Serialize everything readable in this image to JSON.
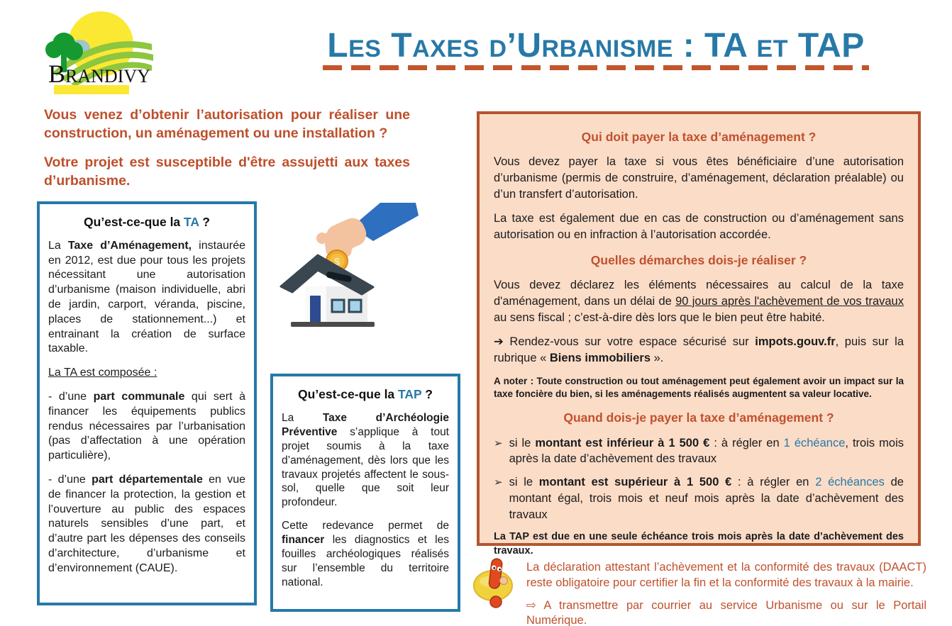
{
  "colors": {
    "accent_teal": "#2779A7",
    "accent_orange": "#C0512E",
    "info_box_border": "#B5552F",
    "info_box_bg": "#FBDCC7",
    "logo_yellow": "#FBE833",
    "logo_green": "#8DC63F"
  },
  "logo": {
    "name": "Brandivy",
    "wordmark_initial": "B",
    "wordmark_rest": "RANDIVY"
  },
  "title": {
    "text": "Les Taxes d’Urbanisme : TA et TAP"
  },
  "intro": {
    "p1": "Vous venez d’obtenir l’autorisation pour réaliser une construction, un aménagement ou une installation ?",
    "p2": "Votre projet est susceptible d'être assujetti aux taxes d’urbanisme."
  },
  "ta_box": {
    "title_prefix": "Qu’est-ce-que la ",
    "title_tax": "TA",
    "title_suffix": " ?",
    "p1": [
      {
        "t": "La "
      },
      {
        "t": "Taxe d’Aménagement,",
        "b": true
      },
      {
        "t": " instaurée en 2012, est due pour tous les projets nécessitant une autorisation d’urbanisme (maison individuelle, abri de jardin, carport, véranda, piscine, places de stationnement...) et entrainant la création de surface taxable."
      }
    ],
    "p2": [
      {
        "t": "La TA est composée :",
        "u": true
      }
    ],
    "p3": [
      {
        "t": "- d’une "
      },
      {
        "t": "part communale",
        "b": true
      },
      {
        "t": " qui sert à financer les équipements publics rendus nécessaires par l’urbanisation (pas d’affectation à une opération particulière),"
      }
    ],
    "p4": [
      {
        "t": "- d’une "
      },
      {
        "t": "part départementale",
        "b": true
      },
      {
        "t": " en vue de financer la protection, la gestion et l’ouverture au public des espaces naturels sensibles d’une part, et d’autre part les dépenses des conseils d’architecture, d’urbanisme et d’environnement (CAUE)."
      }
    ]
  },
  "tap_box": {
    "title_prefix": "Qu’est-ce-que la ",
    "title_tax": "TAP",
    "title_suffix": " ?",
    "p1": [
      {
        "t": "La "
      },
      {
        "t": "Taxe d’Archéologie Préventive",
        "b": true
      },
      {
        "t": " s’applique à tout projet soumis à la taxe d’aménagement, dès lors que les travaux projetés affectent le sous-sol, quelle que soit leur profondeur."
      }
    ],
    "p2": [
      {
        "t": "Cette redevance permet de "
      },
      {
        "t": "financer",
        "b": true
      },
      {
        "t": " les diagnostics et les fouilles archéologiques réalisés sur l’ensemble du territoire national."
      }
    ]
  },
  "info_box": {
    "s1_heading": "Qui doit payer la taxe d’aménagement ?",
    "s1_p1": "Vous devez payer la taxe si vous êtes bénéficiaire d’une autorisation d’urbanisme (permis de construire, d’aménagement, déclaration préalable) ou d’un transfert d’autorisation.",
    "s1_p2": "La taxe est également due en cas de construction ou d’aménagement sans autorisation ou en infraction à l’autorisation accordée.",
    "s2_heading": "Quelles démarches dois-je réaliser ?",
    "s2_p1": [
      {
        "t": "Vous devez déclarez les éléments nécessaires au calcul de la taxe d'aménagement, dans un délai de "
      },
      {
        "t": "90 jours après l'achèvement de vos travaux",
        "u": true
      },
      {
        "t": " au sens fiscal ; c’est-à-dire dès lors que le bien peut être habité."
      }
    ],
    "s2_p2": [
      {
        "t": "➔  Rendez-vous sur votre espace sécurisé sur "
      },
      {
        "t": "impots.gouv.fr",
        "b": true
      },
      {
        "t": ", puis sur la rubrique « "
      },
      {
        "t": "Biens immobiliers",
        "b": true
      },
      {
        "t": " »."
      }
    ],
    "note": [
      {
        "t": "A noter : Toute construction ou tout aménagement peut également avoir un impact sur la taxe foncière du bien, si les aménagements réalisés augmentent sa valeur locative.",
        "b": true
      }
    ],
    "s3_heading": "Quand dois-je payer la taxe d’aménagement ?",
    "bullet_char": "➢",
    "s3_b1": [
      {
        "t": "si le "
      },
      {
        "t": "montant est inférieur à 1 500 €",
        "b": true
      },
      {
        "t": " : à régler en "
      },
      {
        "t": "1 échéance",
        "c": "#2779A7"
      },
      {
        "t": ", trois mois après la date d’achèvement des travaux"
      }
    ],
    "s3_b2": [
      {
        "t": "si le "
      },
      {
        "t": "montant est supérieur à 1 500 €",
        "b": true
      },
      {
        "t": " : à régler en "
      },
      {
        "t": "2 échéances",
        "c": "#2779A7"
      },
      {
        "t": " de montant égal, trois mois et neuf mois après la date d’achèvement des travaux"
      }
    ],
    "tap_line": "La TAP est due en une seule échéance trois mois après la date d’achèvement des travaux."
  },
  "footer": {
    "p1": "La déclaration attestant l’achèvement et la conformité des travaux (DAACT) reste obligatoire pour certifier la fin et la conformité des travaux à la mairie.",
    "p2": [
      {
        "t": "⇨ "
      },
      {
        "t": "A transmettre par courrier au service Urbanisme ou sur le Portail Numérique."
      }
    ]
  },
  "house_icon": {
    "coin_symbol": "$"
  }
}
